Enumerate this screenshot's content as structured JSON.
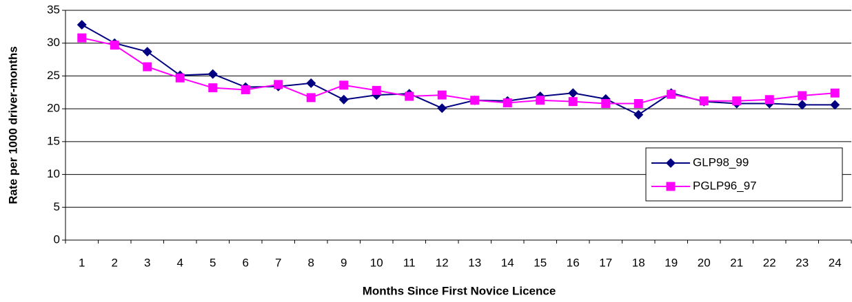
{
  "chart_data": {
    "type": "line",
    "x_label": "Months Since First Novice Licence",
    "y_label": "Rate per 1000 driver-months",
    "categories": [
      "1",
      "2",
      "3",
      "4",
      "5",
      "6",
      "7",
      "8",
      "9",
      "10",
      "11",
      "12",
      "13",
      "14",
      "15",
      "16",
      "17",
      "18",
      "19",
      "20",
      "21",
      "22",
      "23",
      "24"
    ],
    "series": [
      {
        "name": "GLP98_99",
        "color": "#000080",
        "marker": "diamond",
        "values": [
          32.8,
          30.0,
          28.7,
          25.1,
          25.3,
          23.3,
          23.4,
          23.9,
          21.4,
          22.1,
          22.3,
          20.1,
          21.3,
          21.2,
          21.9,
          22.4,
          21.5,
          19.1,
          22.4,
          21.1,
          20.8,
          20.8,
          20.6,
          20.6
        ]
      },
      {
        "name": "PGLP96_97",
        "color": "#ff00ff",
        "marker": "square",
        "values": [
          30.8,
          29.7,
          26.4,
          24.7,
          23.2,
          22.9,
          23.7,
          21.7,
          23.6,
          22.8,
          21.9,
          22.1,
          21.3,
          20.9,
          21.3,
          21.1,
          20.8,
          20.8,
          22.2,
          21.2,
          21.2,
          21.4,
          22.0,
          22.4
        ]
      }
    ],
    "ylim": [
      0,
      35
    ],
    "yticks": [
      0,
      5,
      10,
      15,
      20,
      25,
      30,
      35
    ],
    "grid": true,
    "legend": "lower right"
  }
}
